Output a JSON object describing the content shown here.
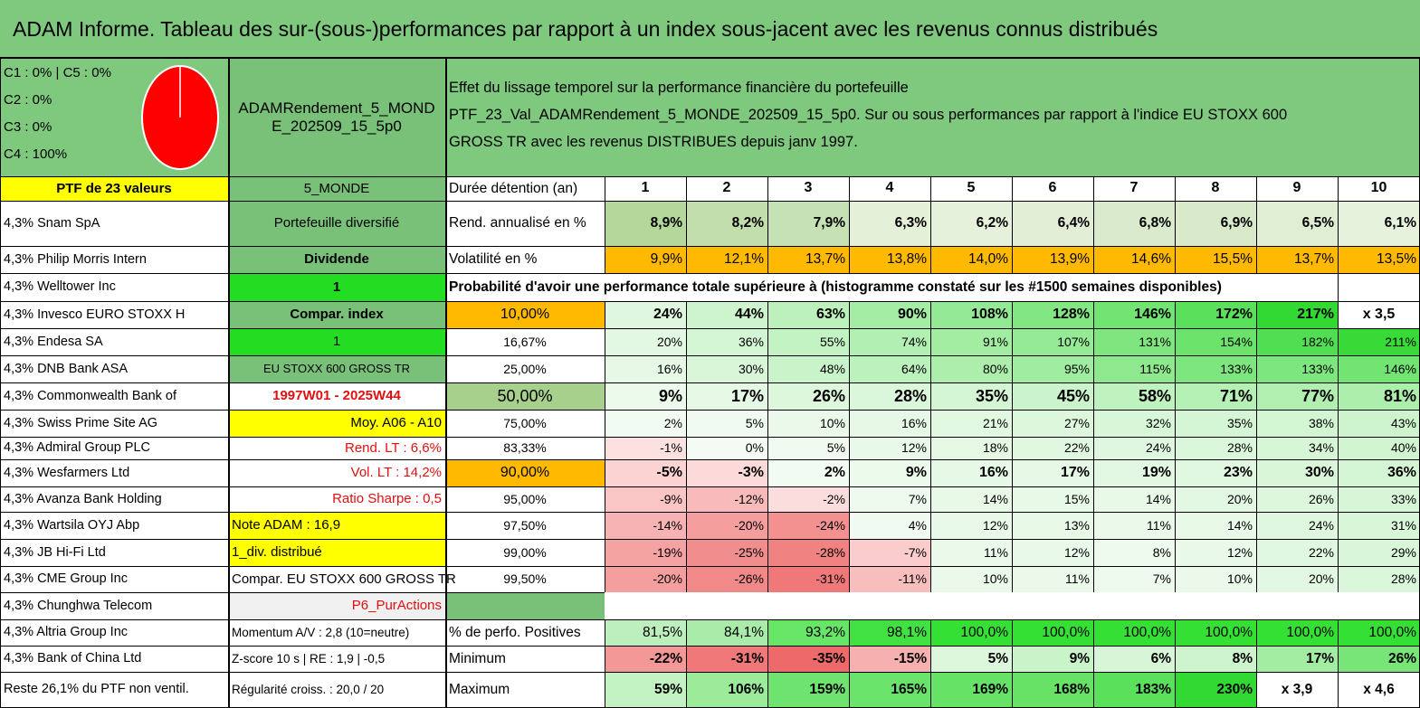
{
  "header": {
    "title": "ADAM Informe. Tableau des sur-(sous-)performances par rapport à un index sous-jacent avec les revenus connus distribués"
  },
  "allocation": {
    "lines": [
      "C1 : 0% | C5 : 0%",
      "C2 : 0%",
      "C3 : 0%",
      "C4 : 100%"
    ],
    "pie_color": "#ff0000"
  },
  "portfolio_name": "ADAMRendement_5_MONDE_202509_15_5p0",
  "description": {
    "line1": "Effet du lissage temporel sur la performance financière du portefeuille",
    "line2": "PTF_23_Val_ADAMRendement_5_MONDE_202509_15_5p0. Sur ou sous performances par rapport à l'indice EU STOXX 600",
    "line3": "GROSS TR avec les revenus DISTRIBUES depuis janv 1997."
  },
  "left_panel": {
    "header": "PTF de 23 valeurs",
    "holdings": [
      "4,3% Snam SpA",
      "4,3% Philip Morris Intern",
      "4,3% Welltower Inc",
      "4,3% Invesco EURO STOXX H",
      "4,3% Endesa SA",
      "4,3% DNB Bank ASA",
      "4,3% Commonwealth Bank of",
      "4,3% Swiss Prime Site AG",
      "4,3% Admiral Group PLC",
      "4,3% Wesfarmers Ltd",
      "4,3% Avanza Bank Holding",
      "4,3% Wartsila OYJ Abp",
      "4,3% JB Hi-Fi Ltd",
      "4,3% CME Group Inc",
      "4,3% Chunghwa Telecom",
      "4,3% Altria Group Inc",
      "4,3% Bank of China Ltd",
      "Reste 26,1% du PTF non ventil."
    ]
  },
  "info_panel": [
    "5_MONDE",
    "Portefeuille diversifié",
    "Dividende",
    "1",
    "Compar. index",
    "1",
    "EU STOXX 600 GROSS TR",
    "1997W01 - 2025W44",
    "Moy. A06 - A10",
    "Rend. LT : 6,6%",
    "Vol. LT : 14,2%",
    "Ratio Sharpe : 0,5",
    "Note ADAM : 16,9",
    "1_div. distribué",
    "Compar. EU STOXX 600 GROSS TR",
    "P6_PurActions",
    "Momentum A/V : 2,8 (10=neutre)",
    "Z-score 10 s | RE : 1,9 | -0,5",
    "Régularité croiss. : 20,0 / 20"
  ],
  "table": {
    "duration_label": "Durée détention (an)",
    "years": [
      "1",
      "2",
      "3",
      "4",
      "5",
      "6",
      "7",
      "8",
      "9",
      "10"
    ],
    "return_label": "Rend. annualisé en %",
    "returns": [
      "8,9%",
      "8,2%",
      "7,9%",
      "6,3%",
      "6,2%",
      "6,4%",
      "6,8%",
      "6,9%",
      "6,5%",
      "6,1%"
    ],
    "volatility_label": "Volatilité en %",
    "volatility": [
      "9,9%",
      "12,1%",
      "13,7%",
      "13,8%",
      "14,0%",
      "13,9%",
      "14,6%",
      "15,5%",
      "13,7%",
      "13,5%"
    ],
    "probability_title": "Probabilité d'avoir une performance totale supérieure à (histogramme constaté sur les #1500 semaines disponibles)",
    "probability_rows": [
      {
        "p": "10,00%",
        "v": [
          "24%",
          "44%",
          "63%",
          "90%",
          "108%",
          "128%",
          "146%",
          "172%",
          "217%",
          "x 3,5"
        ]
      },
      {
        "p": "16,67%",
        "v": [
          "20%",
          "36%",
          "55%",
          "74%",
          "91%",
          "107%",
          "131%",
          "154%",
          "182%",
          "211%"
        ]
      },
      {
        "p": "25,00%",
        "v": [
          "16%",
          "30%",
          "48%",
          "64%",
          "80%",
          "95%",
          "115%",
          "133%",
          "133%",
          "146%"
        ]
      },
      {
        "p": "50,00%",
        "v": [
          "9%",
          "17%",
          "26%",
          "28%",
          "35%",
          "45%",
          "58%",
          "71%",
          "77%",
          "81%"
        ]
      },
      {
        "p": "75,00%",
        "v": [
          "2%",
          "5%",
          "10%",
          "16%",
          "21%",
          "27%",
          "32%",
          "35%",
          "38%",
          "43%"
        ]
      },
      {
        "p": "83,33%",
        "v": [
          "-1%",
          "0%",
          "5%",
          "12%",
          "18%",
          "22%",
          "24%",
          "28%",
          "34%",
          "40%"
        ]
      },
      {
        "p": "90,00%",
        "v": [
          "-5%",
          "-3%",
          "2%",
          "9%",
          "16%",
          "17%",
          "19%",
          "23%",
          "30%",
          "36%"
        ]
      },
      {
        "p": "95,00%",
        "v": [
          "-9%",
          "-12%",
          "-2%",
          "7%",
          "14%",
          "15%",
          "14%",
          "20%",
          "26%",
          "33%"
        ]
      },
      {
        "p": "97,50%",
        "v": [
          "-14%",
          "-20%",
          "-24%",
          "4%",
          "12%",
          "13%",
          "11%",
          "14%",
          "24%",
          "31%"
        ]
      },
      {
        "p": "99,00%",
        "v": [
          "-19%",
          "-25%",
          "-28%",
          "-7%",
          "11%",
          "12%",
          "8%",
          "12%",
          "22%",
          "29%"
        ]
      },
      {
        "p": "99,50%",
        "v": [
          "-20%",
          "-26%",
          "-31%",
          "-11%",
          "10%",
          "11%",
          "7%",
          "10%",
          "20%",
          "28%"
        ]
      }
    ],
    "positive_label": "% de perfo. Positives",
    "positive": [
      "81,5%",
      "84,1%",
      "93,2%",
      "98,1%",
      "100,0%",
      "100,0%",
      "100,0%",
      "100,0%",
      "100,0%",
      "100,0%"
    ],
    "min_label": "Minimum",
    "minimum": [
      "-22%",
      "-31%",
      "-35%",
      "-15%",
      "5%",
      "9%",
      "6%",
      "8%",
      "17%",
      "26%"
    ],
    "max_label": "Maximum",
    "maximum": [
      "59%",
      "106%",
      "159%",
      "165%",
      "169%",
      "168%",
      "183%",
      "230%",
      "x 3,9",
      "x 4,6"
    ]
  },
  "colors": {
    "ribbon_green": "#7fc97f",
    "info_green": "#79c179",
    "bright_green": "#22dd22",
    "yellow": "#ffff00",
    "orange": "#ffb900",
    "red_text": "#e01010",
    "light_gray": "#f0f0f0"
  }
}
